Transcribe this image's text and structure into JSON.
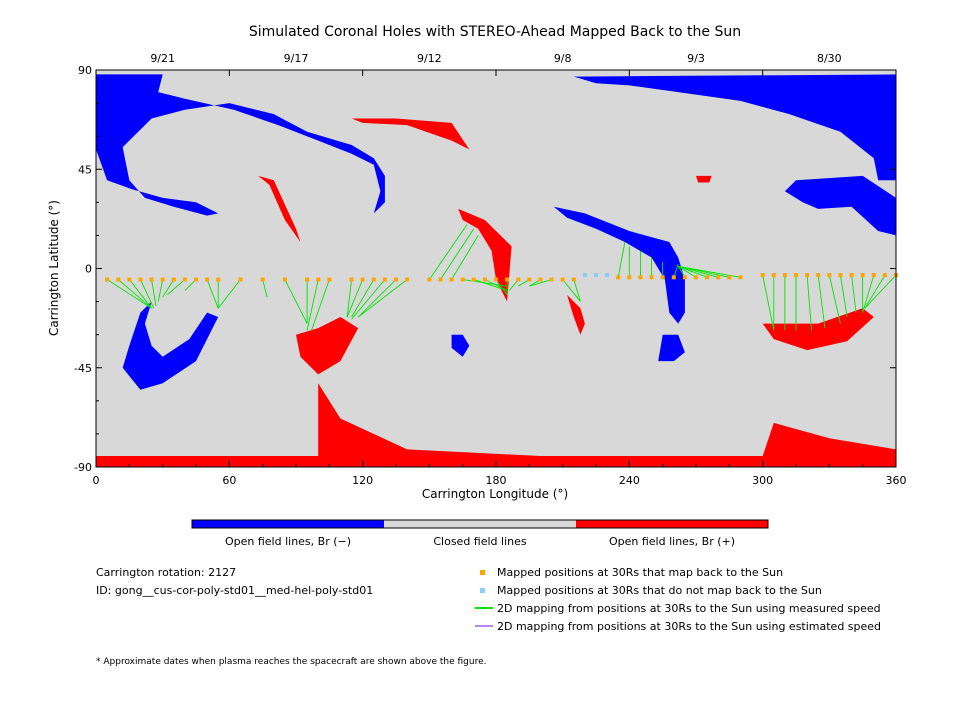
{
  "chart_data": {
    "type": "heatmap",
    "title": "Simulated Coronal Holes with STEREO-Ahead Mapped Back to the Sun",
    "xlabel": "Carrington Longitude (°)",
    "ylabel": "Carrington Latitude (°)",
    "xlim": [
      0,
      360
    ],
    "ylim": [
      -90,
      90
    ],
    "x_ticks": [
      "0",
      "60",
      "120",
      "180",
      "240",
      "300",
      "360"
    ],
    "y_ticks": [
      "90",
      "45",
      "0",
      "-45",
      "-90"
    ],
    "top_ticks": [
      {
        "label": "9/21",
        "lon": 30
      },
      {
        "label": "9/17",
        "lon": 90
      },
      {
        "label": "9/12",
        "lon": 150
      },
      {
        "label": "9/8",
        "lon": 210
      },
      {
        "label": "9/3",
        "lon": 270
      },
      {
        "label": "8/30",
        "lon": 330
      }
    ],
    "colorbar_labels": [
      "Open field lines, Br (−)",
      "Closed field lines",
      "Open field lines, Br (+)"
    ],
    "colors": {
      "negative": "#0000ff",
      "closed": "#d8d8d8",
      "positive": "#ff0000",
      "mapped": "#ffa500",
      "unmapped": "#87cefa",
      "measured": "#00e600",
      "estimated": "#bb88ee"
    },
    "info": {
      "rotation": "Carrington rotation: 2127",
      "id": "ID: gong__cus-cor-poly-std01__med-hel-poly-std01"
    },
    "legend": [
      {
        "label": "Mapped positions at 30Rs that map back to the Sun",
        "kind": "mapped"
      },
      {
        "label": "Mapped positions at 30Rs that do not map back to the Sun",
        "kind": "unmapped"
      },
      {
        "label": "2D mapping from positions at 30Rs to the Sun using measured speed",
        "kind": "measured"
      },
      {
        "label": "2D mapping from positions at 30Rs to the Sun using estimated speed",
        "kind": "estimated"
      }
    ],
    "footnote": "* Approximate dates when plasma reaches the spacecraft are shown above the figure.",
    "regions": [
      {
        "polarity": "negative",
        "points": [
          [
            0,
            88
          ],
          [
            0,
            54
          ],
          [
            5,
            40
          ],
          [
            16,
            36
          ],
          [
            30,
            32
          ],
          [
            45,
            30
          ],
          [
            55,
            25
          ],
          [
            50,
            24
          ],
          [
            35,
            28
          ],
          [
            22,
            32
          ],
          [
            15,
            40
          ],
          [
            12,
            55
          ],
          [
            25,
            68
          ],
          [
            40,
            72
          ],
          [
            60,
            75
          ],
          [
            80,
            70
          ],
          [
            95,
            62
          ],
          [
            115,
            56
          ],
          [
            125,
            50
          ],
          [
            130,
            42
          ],
          [
            130,
            30
          ],
          [
            125,
            25
          ],
          [
            128,
            35
          ],
          [
            125,
            47
          ],
          [
            115,
            52
          ],
          [
            100,
            58
          ],
          [
            82,
            65
          ],
          [
            62,
            72
          ],
          [
            40,
            77
          ],
          [
            28,
            80
          ],
          [
            30,
            88
          ]
        ]
      },
      {
        "polarity": "negative",
        "points": [
          [
            215,
            87
          ],
          [
            360,
            88
          ],
          [
            360,
            40
          ],
          [
            352,
            40
          ],
          [
            350,
            50
          ],
          [
            335,
            62
          ],
          [
            312,
            70
          ],
          [
            290,
            76
          ],
          [
            262,
            80
          ],
          [
            240,
            83
          ],
          [
            225,
            84
          ]
        ]
      },
      {
        "polarity": "negative",
        "points": [
          [
            315,
            40
          ],
          [
            345,
            42
          ],
          [
            360,
            32
          ],
          [
            360,
            15
          ],
          [
            352,
            17
          ],
          [
            340,
            28
          ],
          [
            325,
            27
          ],
          [
            318,
            30
          ],
          [
            310,
            35
          ]
        ]
      },
      {
        "polarity": "negative",
        "points": [
          [
            206,
            28
          ],
          [
            220,
            25
          ],
          [
            240,
            17
          ],
          [
            258,
            12
          ],
          [
            262,
            5
          ],
          [
            265,
            -5
          ],
          [
            265,
            -20
          ],
          [
            262,
            -25
          ],
          [
            258,
            -20
          ],
          [
            256,
            -5
          ],
          [
            250,
            5
          ],
          [
            238,
            12
          ],
          [
            225,
            18
          ],
          [
            212,
            23
          ]
        ]
      },
      {
        "polarity": "negative",
        "points": [
          [
            255,
            -30
          ],
          [
            262,
            -30
          ],
          [
            265,
            -38
          ],
          [
            260,
            -42
          ],
          [
            253,
            -42
          ]
        ]
      },
      {
        "polarity": "negative",
        "points": [
          [
            20,
            -55
          ],
          [
            30,
            -52
          ],
          [
            45,
            -42
          ],
          [
            55,
            -22
          ],
          [
            50,
            -20
          ],
          [
            42,
            -32
          ],
          [
            30,
            -40
          ],
          [
            25,
            -35
          ],
          [
            22,
            -25
          ],
          [
            25,
            -15
          ],
          [
            20,
            -20
          ],
          [
            15,
            -35
          ],
          [
            12,
            -45
          ]
        ]
      },
      {
        "polarity": "negative",
        "points": [
          [
            160,
            -30
          ],
          [
            165,
            -30
          ],
          [
            168,
            -35
          ],
          [
            165,
            -40
          ],
          [
            160,
            -36
          ]
        ]
      },
      {
        "polarity": "positive",
        "points": [
          [
            0,
            -85
          ],
          [
            100,
            -85
          ],
          [
            100,
            -52
          ],
          [
            110,
            -68
          ],
          [
            140,
            -82
          ],
          [
            200,
            -85
          ],
          [
            300,
            -85
          ],
          [
            305,
            -70
          ],
          [
            330,
            -77
          ],
          [
            360,
            -82
          ],
          [
            360,
            -90
          ],
          [
            0,
            -90
          ]
        ]
      },
      {
        "polarity": "positive",
        "points": [
          [
            115,
            68
          ],
          [
            135,
            68
          ],
          [
            160,
            66
          ],
          [
            168,
            54
          ],
          [
            160,
            58
          ],
          [
            140,
            65
          ],
          [
            120,
            66
          ]
        ]
      },
      {
        "polarity": "positive",
        "points": [
          [
            73,
            42
          ],
          [
            80,
            40
          ],
          [
            90,
            18
          ],
          [
            92,
            12
          ],
          [
            85,
            22
          ],
          [
            78,
            38
          ]
        ]
      },
      {
        "polarity": "positive",
        "points": [
          [
            163,
            27
          ],
          [
            175,
            22
          ],
          [
            187,
            10
          ],
          [
            185,
            -15
          ],
          [
            180,
            -5
          ],
          [
            178,
            8
          ],
          [
            172,
            18
          ],
          [
            165,
            22
          ]
        ]
      },
      {
        "polarity": "positive",
        "points": [
          [
            90,
            -30
          ],
          [
            100,
            -27
          ],
          [
            110,
            -22
          ],
          [
            118,
            -27
          ],
          [
            110,
            -42
          ],
          [
            100,
            -48
          ],
          [
            92,
            -40
          ]
        ]
      },
      {
        "polarity": "positive",
        "points": [
          [
            300,
            -25
          ],
          [
            325,
            -25
          ],
          [
            345,
            -18
          ],
          [
            350,
            -22
          ],
          [
            338,
            -33
          ],
          [
            320,
            -37
          ],
          [
            305,
            -32
          ]
        ]
      },
      {
        "polarity": "positive",
        "points": [
          [
            270,
            42
          ],
          [
            277,
            42
          ],
          [
            276,
            39
          ],
          [
            271,
            39
          ]
        ]
      },
      {
        "polarity": "positive",
        "points": [
          [
            212,
            -12
          ],
          [
            218,
            -18
          ],
          [
            220,
            -25
          ],
          [
            218,
            -30
          ],
          [
            215,
            -22
          ]
        ]
      }
    ],
    "mapped_points": [
      {
        "lon": 5,
        "lat": -5,
        "status": "mapped",
        "foot_lon": 25,
        "foot_lat": -18
      },
      {
        "lon": 10,
        "lat": -5,
        "status": "mapped",
        "foot_lon": 25,
        "foot_lat": -18
      },
      {
        "lon": 15,
        "lat": -5,
        "status": "mapped",
        "foot_lon": 25,
        "foot_lat": -18
      },
      {
        "lon": 20,
        "lat": -5,
        "status": "mapped",
        "foot_lon": 26,
        "foot_lat": -18
      },
      {
        "lon": 25,
        "lat": -5,
        "status": "mapped",
        "foot_lon": 27,
        "foot_lat": -17
      },
      {
        "lon": 30,
        "lat": -5,
        "status": "mapped",
        "foot_lon": 28,
        "foot_lat": -15
      },
      {
        "lon": 35,
        "lat": -5,
        "status": "mapped",
        "foot_lon": 30,
        "foot_lat": -13
      },
      {
        "lon": 40,
        "lat": -5,
        "status": "mapped",
        "foot_lon": 32,
        "foot_lat": -12
      },
      {
        "lon": 45,
        "lat": -5,
        "status": "mapped",
        "foot_lon": 40,
        "foot_lat": -10
      },
      {
        "lon": 50,
        "lat": -5,
        "status": "mapped",
        "foot_lon": 55,
        "foot_lat": -18
      },
      {
        "lon": 55,
        "lat": -5,
        "status": "mapped",
        "foot_lon": 55,
        "foot_lat": -18
      },
      {
        "lon": 65,
        "lat": -5,
        "status": "mapped",
        "foot_lon": 55,
        "foot_lat": -18
      },
      {
        "lon": 75,
        "lat": -5,
        "status": "mapped",
        "foot_lon": 77,
        "foot_lat": -13
      },
      {
        "lon": 85,
        "lat": -5,
        "status": "mapped",
        "foot_lon": 95,
        "foot_lat": -25
      },
      {
        "lon": 95,
        "lat": -5,
        "status": "mapped",
        "foot_lon": 95,
        "foot_lat": -25
      },
      {
        "lon": 100,
        "lat": -5,
        "status": "mapped",
        "foot_lon": 95,
        "foot_lat": -28
      },
      {
        "lon": 105,
        "lat": -5,
        "status": "mapped",
        "foot_lon": 97,
        "foot_lat": -28
      },
      {
        "lon": 115,
        "lat": -5,
        "status": "mapped",
        "foot_lon": 113,
        "foot_lat": -22
      },
      {
        "lon": 120,
        "lat": -5,
        "status": "mapped",
        "foot_lon": 113,
        "foot_lat": -22
      },
      {
        "lon": 125,
        "lat": -5,
        "status": "mapped",
        "foot_lon": 115,
        "foot_lat": -22
      },
      {
        "lon": 130,
        "lat": -5,
        "status": "mapped",
        "foot_lon": 115,
        "foot_lat": -23
      },
      {
        "lon": 135,
        "lat": -5,
        "status": "mapped",
        "foot_lon": 118,
        "foot_lat": -22
      },
      {
        "lon": 140,
        "lat": -5,
        "status": "mapped",
        "foot_lon": 118,
        "foot_lat": -22
      },
      {
        "lon": 150,
        "lat": -5,
        "status": "mapped",
        "foot_lon": 167,
        "foot_lat": 20
      },
      {
        "lon": 155,
        "lat": -5,
        "status": "mapped",
        "foot_lon": 170,
        "foot_lat": 18
      },
      {
        "lon": 160,
        "lat": -5,
        "status": "mapped",
        "foot_lon": 172,
        "foot_lat": 15
      },
      {
        "lon": 165,
        "lat": -5,
        "status": "mapped",
        "foot_lon": 185,
        "foot_lat": -8
      },
      {
        "lon": 170,
        "lat": -5,
        "status": "mapped",
        "foot_lon": 185,
        "foot_lat": -10
      },
      {
        "lon": 175,
        "lat": -5,
        "status": "mapped",
        "foot_lon": 185,
        "foot_lat": -10
      },
      {
        "lon": 180,
        "lat": -5,
        "status": "mapped",
        "foot_lon": 185,
        "foot_lat": -12
      },
      {
        "lon": 185,
        "lat": -5,
        "status": "mapped",
        "foot_lon": 185,
        "foot_lat": -12
      },
      {
        "lon": 190,
        "lat": -5,
        "status": "mapped",
        "foot_lon": 186,
        "foot_lat": -10
      },
      {
        "lon": 195,
        "lat": -5,
        "status": "mapped",
        "foot_lon": 190,
        "foot_lat": -8
      },
      {
        "lon": 200,
        "lat": -5,
        "status": "mapped",
        "foot_lon": 195,
        "foot_lat": -8
      },
      {
        "lon": 205,
        "lat": -5,
        "status": "mapped",
        "foot_lon": 195,
        "foot_lat": -8
      },
      {
        "lon": 210,
        "lat": -5,
        "status": "mapped",
        "foot_lon": 218,
        "foot_lat": -15
      },
      {
        "lon": 215,
        "lat": -5,
        "status": "mapped",
        "foot_lon": 218,
        "foot_lat": -15
      },
      {
        "lon": 220,
        "lat": -3,
        "status": "unmapped"
      },
      {
        "lon": 225,
        "lat": -3,
        "status": "unmapped"
      },
      {
        "lon": 230,
        "lat": -3,
        "status": "unmapped"
      },
      {
        "lon": 235,
        "lat": -4,
        "status": "mapped",
        "foot_lon": 238,
        "foot_lat": 12
      },
      {
        "lon": 240,
        "lat": -4,
        "status": "mapped",
        "foot_lon": 240,
        "foot_lat": 10
      },
      {
        "lon": 245,
        "lat": -4,
        "status": "mapped",
        "foot_lon": 245,
        "foot_lat": 8
      },
      {
        "lon": 250,
        "lat": -4,
        "status": "mapped",
        "foot_lon": 250,
        "foot_lat": 5
      },
      {
        "lon": 255,
        "lat": -4,
        "status": "mapped",
        "foot_lon": 255,
        "foot_lat": 3
      },
      {
        "lon": 260,
        "lat": -4,
        "status": "mapped",
        "foot_lon": 262,
        "foot_lat": 2
      },
      {
        "lon": 265,
        "lat": -4,
        "status": "mapped",
        "foot_lon": 262,
        "foot_lat": 1
      },
      {
        "lon": 270,
        "lat": -4,
        "status": "mapped",
        "foot_lon": 262,
        "foot_lat": 1
      },
      {
        "lon": 275,
        "lat": -4,
        "status": "mapped",
        "foot_lon": 262,
        "foot_lat": 1
      },
      {
        "lon": 280,
        "lat": -4,
        "status": "mapped",
        "foot_lon": 262,
        "foot_lat": 1
      },
      {
        "lon": 285,
        "lat": -4,
        "status": "mapped",
        "foot_lon": 262,
        "foot_lat": 1
      },
      {
        "lon": 290,
        "lat": -4,
        "status": "mapped",
        "foot_lon": 262,
        "foot_lat": 1
      },
      {
        "lon": 300,
        "lat": -3,
        "status": "mapped",
        "foot_lon": 305,
        "foot_lat": -28
      },
      {
        "lon": 305,
        "lat": -3,
        "status": "mapped",
        "foot_lon": 305,
        "foot_lat": -28
      },
      {
        "lon": 310,
        "lat": -3,
        "status": "mapped",
        "foot_lon": 310,
        "foot_lat": -28
      },
      {
        "lon": 315,
        "lat": -3,
        "status": "mapped",
        "foot_lon": 315,
        "foot_lat": -28
      },
      {
        "lon": 320,
        "lat": -3,
        "status": "mapped",
        "foot_lon": 322,
        "foot_lat": -28
      },
      {
        "lon": 325,
        "lat": -3,
        "status": "mapped",
        "foot_lon": 328,
        "foot_lat": -27
      },
      {
        "lon": 330,
        "lat": -3,
        "status": "mapped",
        "foot_lon": 335,
        "foot_lat": -25
      },
      {
        "lon": 335,
        "lat": -3,
        "status": "mapped",
        "foot_lon": 338,
        "foot_lat": -22
      },
      {
        "lon": 340,
        "lat": -3,
        "status": "mapped",
        "foot_lon": 342,
        "foot_lat": -20
      },
      {
        "lon": 345,
        "lat": -3,
        "status": "mapped",
        "foot_lon": 345,
        "foot_lat": -20
      },
      {
        "lon": 350,
        "lat": -3,
        "status": "mapped",
        "foot_lon": 345,
        "foot_lat": -20
      },
      {
        "lon": 355,
        "lat": -3,
        "status": "mapped",
        "foot_lon": 346,
        "foot_lat": -18
      },
      {
        "lon": 360,
        "lat": -3,
        "status": "mapped",
        "foot_lon": 346,
        "foot_lat": -18
      }
    ]
  }
}
